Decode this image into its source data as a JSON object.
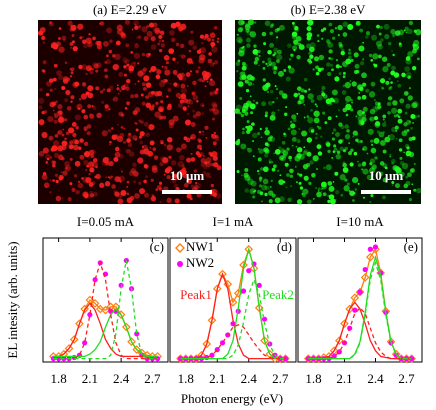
{
  "images": [
    {
      "title": "(a) E=2.29 eV",
      "scale_bar": "10 μm",
      "color": "#ff2020",
      "background": "#1c0000"
    },
    {
      "title": "(b) E=2.38 eV",
      "scale_bar": "10 μm",
      "color": "#20ff20",
      "background": "#001800"
    }
  ],
  "axis_labels": {
    "y": "EL intesity (arb. units)",
    "x": "Photon energy (eV)"
  },
  "chart_data": [
    {
      "type": "line",
      "title": "I=0.05 mA",
      "panel_label": "(c)",
      "x": [
        1.75,
        1.8,
        1.85,
        1.9,
        1.95,
        2.0,
        2.05,
        2.1,
        2.15,
        2.2,
        2.25,
        2.3,
        2.35,
        2.4,
        2.45,
        2.5,
        2.55,
        2.6,
        2.65,
        2.7,
        2.75
      ],
      "xlim": [
        1.65,
        2.85
      ],
      "xticks": [
        1.8,
        2.1,
        2.4,
        2.7
      ],
      "ylim": [
        0,
        1.1
      ],
      "legend": false,
      "series": [
        {
          "name": "NW1",
          "color": "#ff7f0e",
          "marker": "diamond",
          "values": [
            0.05,
            0.05,
            0.07,
            0.12,
            0.2,
            0.34,
            0.47,
            0.55,
            0.52,
            0.47,
            0.46,
            0.49,
            0.49,
            0.42,
            0.31,
            0.18,
            0.11,
            0.08,
            0.06,
            0.05,
            0.05
          ]
        },
        {
          "name": "NW2",
          "color": "#ff00ff",
          "marker": "circle",
          "line": false,
          "values": [
            0.03,
            0.03,
            0.03,
            0.03,
            0.04,
            0.06,
            0.17,
            0.42,
            0.73,
            0.88,
            0.78,
            0.45,
            0.45,
            0.68,
            0.9,
            0.65,
            0.25,
            0.06,
            0.03,
            0.03,
            0.03
          ]
        },
        {
          "color": "#ff2020",
          "values": [
            0.05,
            0.05,
            0.07,
            0.12,
            0.2,
            0.34,
            0.46,
            0.52,
            0.46,
            0.34,
            0.2,
            0.12,
            0.07,
            0.05,
            0.05,
            0.05,
            0.05,
            0.05,
            0.05,
            0.05,
            0.05
          ]
        },
        {
          "color": "#22dd22",
          "values": [
            0.05,
            0.05,
            0.05,
            0.05,
            0.05,
            0.05,
            0.05,
            0.07,
            0.11,
            0.18,
            0.31,
            0.42,
            0.47,
            0.42,
            0.31,
            0.18,
            0.11,
            0.07,
            0.05,
            0.05,
            0.05
          ]
        },
        {
          "color": "#ff2020",
          "dash": true,
          "values": [
            0.03,
            0.03,
            0.03,
            0.03,
            0.03,
            0.06,
            0.17,
            0.42,
            0.73,
            0.88,
            0.73,
            0.42,
            0.17,
            0.06,
            0.03,
            0.03,
            0.03,
            0.03,
            0.03,
            0.03,
            0.03
          ]
        },
        {
          "color": "#22dd22",
          "dash": true,
          "values": [
            0.03,
            0.03,
            0.03,
            0.03,
            0.03,
            0.03,
            0.03,
            0.03,
            0.03,
            0.03,
            0.03,
            0.06,
            0.25,
            0.65,
            0.9,
            0.65,
            0.25,
            0.06,
            0.03,
            0.03,
            0.03
          ]
        }
      ]
    },
    {
      "type": "line",
      "title": "I=1 mA",
      "panel_label": "(d)",
      "x": [
        1.75,
        1.8,
        1.85,
        1.9,
        1.95,
        2.0,
        2.05,
        2.1,
        2.15,
        2.2,
        2.25,
        2.3,
        2.35,
        2.4,
        2.45,
        2.5,
        2.55,
        2.6,
        2.65,
        2.7,
        2.75
      ],
      "xlim": [
        1.65,
        2.85
      ],
      "xticks": [
        1.8,
        2.1,
        2.4,
        2.7
      ],
      "ylim": [
        0,
        1.1
      ],
      "legend": true,
      "annotations": [
        {
          "text": "Peak1",
          "color": "#ff2020"
        },
        {
          "text": "Peak2",
          "color": "#22dd22"
        }
      ],
      "series": [
        {
          "name": "NW1",
          "color": "#ff7f0e",
          "marker": "diamond",
          "values": [
            0.03,
            0.03,
            0.03,
            0.03,
            0.06,
            0.16,
            0.37,
            0.65,
            0.78,
            0.69,
            0.53,
            0.61,
            0.86,
            1.0,
            0.83,
            0.48,
            0.19,
            0.07,
            0.03,
            0.03,
            0.03
          ]
        },
        {
          "name": "NW2",
          "color": "#ff00ff",
          "marker": "circle",
          "line": false,
          "values": [
            0.03,
            0.03,
            0.03,
            0.03,
            0.03,
            0.04,
            0.06,
            0.11,
            0.17,
            0.24,
            0.34,
            0.45,
            0.63,
            0.81,
            0.87,
            0.68,
            0.38,
            0.16,
            0.06,
            0.03,
            0.03
          ]
        },
        {
          "color": "#ff2020",
          "values": [
            0.03,
            0.03,
            0.03,
            0.03,
            0.06,
            0.16,
            0.37,
            0.65,
            0.78,
            0.65,
            0.37,
            0.16,
            0.06,
            0.03,
            0.03,
            0.03,
            0.03,
            0.03,
            0.03,
            0.03,
            0.03
          ]
        },
        {
          "color": "#22dd22",
          "values": [
            0.03,
            0.03,
            0.03,
            0.03,
            0.03,
            0.03,
            0.03,
            0.03,
            0.03,
            0.07,
            0.19,
            0.48,
            0.83,
            1.0,
            0.83,
            0.48,
            0.19,
            0.07,
            0.03,
            0.03,
            0.03
          ]
        },
        {
          "color": "#ff2020",
          "dash": true,
          "values": [
            0.03,
            0.03,
            0.03,
            0.03,
            0.03,
            0.04,
            0.06,
            0.11,
            0.17,
            0.24,
            0.31,
            0.33,
            0.31,
            0.24,
            0.17,
            0.11,
            0.06,
            0.04,
            0.03,
            0.03,
            0.03
          ]
        },
        {
          "color": "#22dd22",
          "dash": true,
          "values": [
            0.03,
            0.03,
            0.03,
            0.03,
            0.03,
            0.03,
            0.03,
            0.03,
            0.03,
            0.03,
            0.06,
            0.15,
            0.35,
            0.6,
            0.73,
            0.6,
            0.35,
            0.15,
            0.06,
            0.03,
            0.03
          ]
        }
      ]
    },
    {
      "type": "line",
      "title": "I=10 mA",
      "panel_label": "(e)",
      "x": [
        1.75,
        1.8,
        1.85,
        1.9,
        1.95,
        2.0,
        2.05,
        2.1,
        2.15,
        2.2,
        2.25,
        2.3,
        2.35,
        2.4,
        2.45,
        2.5,
        2.55,
        2.6,
        2.65,
        2.7,
        2.75
      ],
      "xlim": [
        1.65,
        2.85
      ],
      "xticks": [
        1.8,
        2.1,
        2.4,
        2.7
      ],
      "ylim": [
        0,
        1.1
      ],
      "legend": false,
      "series": [
        {
          "name": "NW1",
          "color": "#ff7f0e",
          "marker": "diamond",
          "values": [
            0.03,
            0.03,
            0.03,
            0.04,
            0.05,
            0.1,
            0.19,
            0.34,
            0.47,
            0.57,
            0.62,
            0.75,
            0.93,
            1.0,
            0.79,
            0.45,
            0.18,
            0.07,
            0.03,
            0.03,
            0.03
          ]
        },
        {
          "name": "NW2",
          "color": "#ff00ff",
          "marker": "circle",
          "line": false,
          "values": [
            0.03,
            0.03,
            0.03,
            0.03,
            0.03,
            0.05,
            0.09,
            0.17,
            0.3,
            0.46,
            0.62,
            0.82,
            1.0,
            1.02,
            0.79,
            0.44,
            0.17,
            0.06,
            0.03,
            0.03,
            0.03
          ]
        },
        {
          "color": "#ff2020",
          "values": [
            0.03,
            0.03,
            0.03,
            0.04,
            0.05,
            0.1,
            0.19,
            0.34,
            0.47,
            0.53,
            0.47,
            0.34,
            0.19,
            0.1,
            0.05,
            0.04,
            0.03,
            0.03,
            0.03,
            0.03,
            0.03
          ]
        },
        {
          "color": "#22dd22",
          "values": [
            0.03,
            0.03,
            0.03,
            0.03,
            0.03,
            0.03,
            0.03,
            0.03,
            0.03,
            0.07,
            0.18,
            0.44,
            0.77,
            0.93,
            0.77,
            0.44,
            0.18,
            0.07,
            0.03,
            0.03,
            0.03
          ]
        },
        {
          "color": "#ff2020",
          "dash": true,
          "values": [
            0.03,
            0.03,
            0.03,
            0.03,
            0.03,
            0.05,
            0.09,
            0.17,
            0.3,
            0.43,
            0.48,
            0.43,
            0.3,
            0.17,
            0.09,
            0.05,
            0.03,
            0.03,
            0.03,
            0.03,
            0.03
          ]
        },
        {
          "color": "#22dd22",
          "dash": true,
          "values": [
            0.03,
            0.03,
            0.03,
            0.03,
            0.03,
            0.03,
            0.03,
            0.03,
            0.03,
            0.06,
            0.17,
            0.42,
            0.73,
            0.88,
            0.73,
            0.42,
            0.17,
            0.06,
            0.03,
            0.03,
            0.03
          ]
        }
      ]
    }
  ]
}
